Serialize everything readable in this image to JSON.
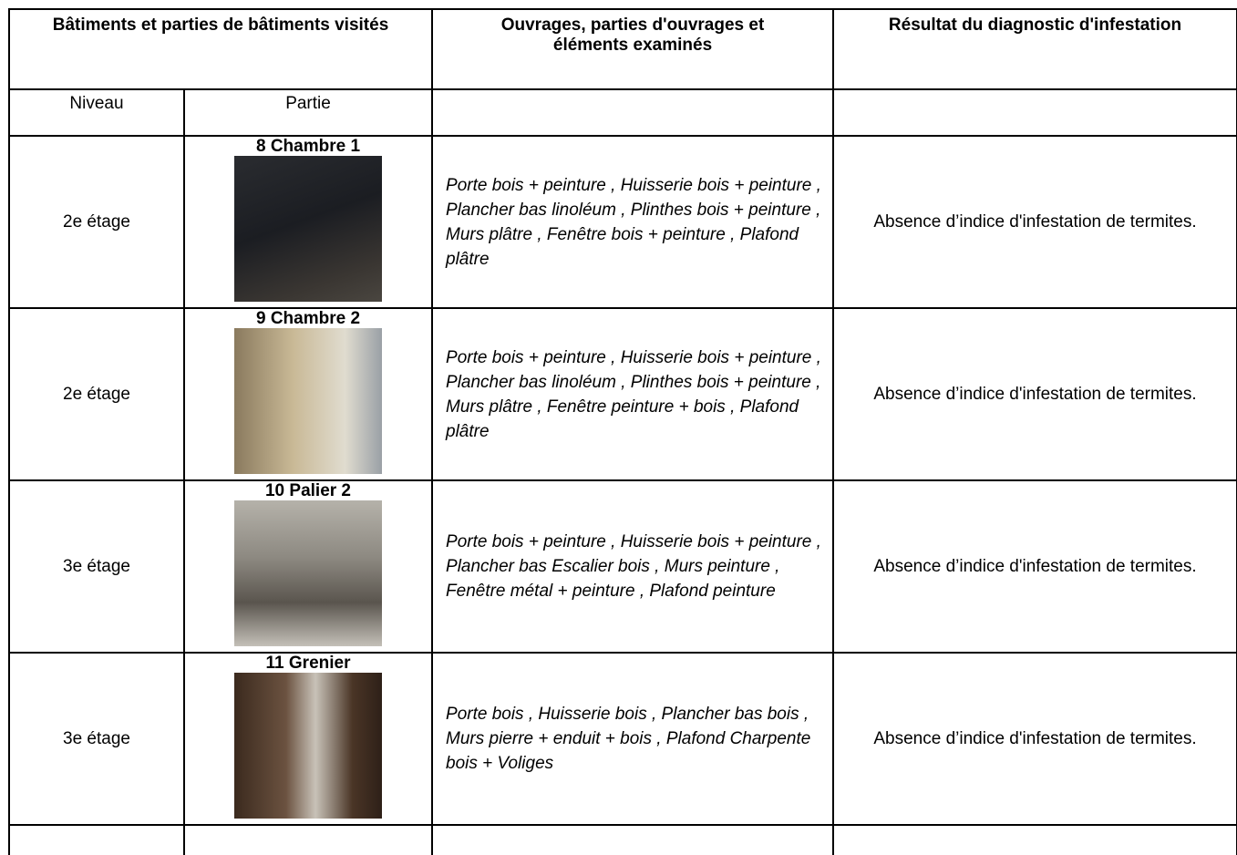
{
  "table": {
    "header": {
      "group": "Bâtiments et parties de bâtiments visités",
      "works": "Ouvrages, parties d'ouvrages et éléments examinés",
      "result": "Résultat du diagnostic d'infestation"
    },
    "subheader": {
      "level": "Niveau",
      "part": "Partie"
    },
    "rows": [
      {
        "level": "2e étage",
        "part": "8 Chambre 1",
        "elements": "Porte bois + peinture , Huisserie bois + peinture , Plancher bas linoléum , Plinthes bois + peinture , Murs plâtre , Fenêtre bois + peinture , Plafond plâtre",
        "result": "Absence d’indice d'infestation de termites."
      },
      {
        "level": "2e étage",
        "part": "9 Chambre 2",
        "elements": "Porte bois + peinture , Huisserie bois + peinture , Plancher bas linoléum , Plinthes bois + peinture , Murs plâtre , Fenêtre peinture + bois , Plafond plâtre",
        "result": "Absence d’indice d'infestation de termites."
      },
      {
        "level": "3e étage",
        "part": "10 Palier 2",
        "elements": "Porte bois + peinture , Huisserie bois + peinture , Plancher bas Escalier bois , Murs peinture , Fenêtre métal + peinture , Plafond peinture",
        "result": "Absence d’indice d'infestation de termites."
      },
      {
        "level": "3e étage",
        "part": "11 Grenier",
        "elements": "Porte bois , Huisserie bois , Plancher bas bois , Murs pierre + enduit + bois , Plafond Charpente bois + Voliges",
        "result": "Absence d’indice d'infestation de termites."
      }
    ]
  }
}
